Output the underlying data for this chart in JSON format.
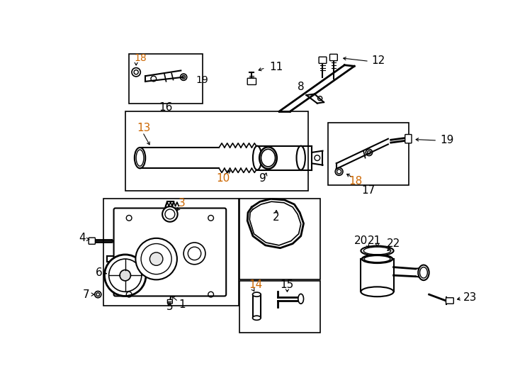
{
  "background_color": "#ffffff",
  "line_color": "#000000",
  "orange": "#cc6600",
  "black": "#000000",
  "fig_width": 7.34,
  "fig_height": 5.4,
  "dpi": 100
}
